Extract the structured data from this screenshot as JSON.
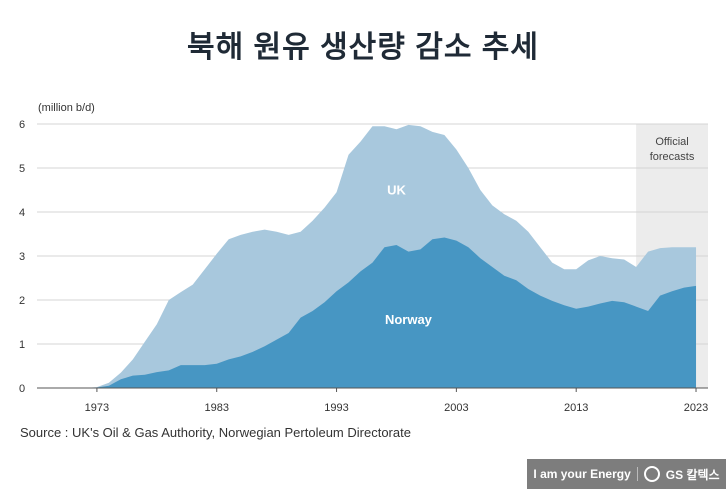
{
  "title": "북해 원유 생산량 감소 추세",
  "source": "Source : UK's Oil & Gas Authority, Norwegian Pertoleum Directorate",
  "brand": {
    "slogan": "I am your Energy",
    "logo_text": "GS 칼텍스"
  },
  "colors": {
    "uk": "#a8c8dd",
    "norway": "#4796c3",
    "forecast": "#ececec",
    "grid": "#d4d4d4",
    "axis": "#555555"
  },
  "chart_data": {
    "type": "area",
    "title": "북해 원유 생산량 감소 추세",
    "ylabel": "(million b/d)",
    "xlabel": "",
    "ylim": [
      0,
      6
    ],
    "xlim": [
      1968,
      2024
    ],
    "yticks": [
      0,
      1,
      2,
      3,
      4,
      5,
      6
    ],
    "xticks": [
      1973,
      1983,
      1993,
      2003,
      2013,
      2023
    ],
    "stacked": false,
    "annotations": [
      {
        "text": "UK",
        "x": 1998,
        "y": 4.4
      },
      {
        "text": "Norway",
        "x": 1999,
        "y": 1.45
      }
    ],
    "forecast": {
      "label_line1": "Official",
      "label_line2": "forecasts",
      "x_start": 2018,
      "x_end": 2024
    },
    "series": [
      {
        "name": "Norway",
        "x": [
          1968,
          1970,
          1972,
          1973,
          1974,
          1975,
          1976,
          1977,
          1978,
          1979,
          1980,
          1981,
          1982,
          1983,
          1984,
          1985,
          1986,
          1987,
          1988,
          1989,
          1990,
          1991,
          1992,
          1993,
          1994,
          1995,
          1996,
          1997,
          1998,
          1999,
          2000,
          2001,
          2002,
          2003,
          2004,
          2005,
          2006,
          2007,
          2008,
          2009,
          2010,
          2011,
          2012,
          2013,
          2014,
          2015,
          2016,
          2017,
          2018,
          2019,
          2020,
          2021,
          2022,
          2023
        ],
        "values": [
          0,
          0,
          0,
          0.01,
          0.05,
          0.2,
          0.28,
          0.3,
          0.36,
          0.4,
          0.52,
          0.52,
          0.52,
          0.55,
          0.65,
          0.72,
          0.82,
          0.95,
          1.1,
          1.25,
          1.6,
          1.75,
          1.95,
          2.2,
          2.4,
          2.65,
          2.85,
          3.2,
          3.25,
          3.1,
          3.15,
          3.38,
          3.42,
          3.35,
          3.2,
          2.95,
          2.75,
          2.55,
          2.45,
          2.25,
          2.1,
          1.98,
          1.88,
          1.8,
          1.85,
          1.92,
          1.98,
          1.95,
          1.85,
          1.75,
          2.1,
          2.2,
          2.28,
          2.32
        ]
      },
      {
        "name": "UK",
        "x": [
          1968,
          1970,
          1972,
          1973,
          1974,
          1975,
          1976,
          1977,
          1978,
          1979,
          1980,
          1981,
          1982,
          1983,
          1984,
          1985,
          1986,
          1987,
          1988,
          1989,
          1990,
          1991,
          1992,
          1993,
          1994,
          1995,
          1996,
          1997,
          1998,
          1999,
          2000,
          2001,
          2002,
          2003,
          2004,
          2005,
          2006,
          2007,
          2008,
          2009,
          2010,
          2011,
          2012,
          2013,
          2014,
          2015,
          2016,
          2017,
          2018,
          2019,
          2020,
          2021,
          2022,
          2023
        ],
        "values": [
          0,
          0,
          0,
          0.02,
          0.12,
          0.35,
          0.65,
          1.05,
          1.45,
          2.0,
          2.18,
          2.35,
          2.7,
          3.05,
          3.38,
          3.48,
          3.55,
          3.6,
          3.55,
          3.48,
          3.55,
          3.8,
          4.1,
          4.45,
          5.3,
          5.6,
          5.95,
          5.95,
          5.88,
          5.98,
          5.95,
          5.82,
          5.75,
          5.42,
          5.0,
          4.5,
          4.15,
          3.95,
          3.8,
          3.55,
          3.2,
          2.85,
          2.7,
          2.7,
          2.9,
          3.0,
          2.95,
          2.92,
          2.75,
          3.1,
          3.18,
          3.2,
          3.2,
          3.2
        ]
      }
    ]
  }
}
